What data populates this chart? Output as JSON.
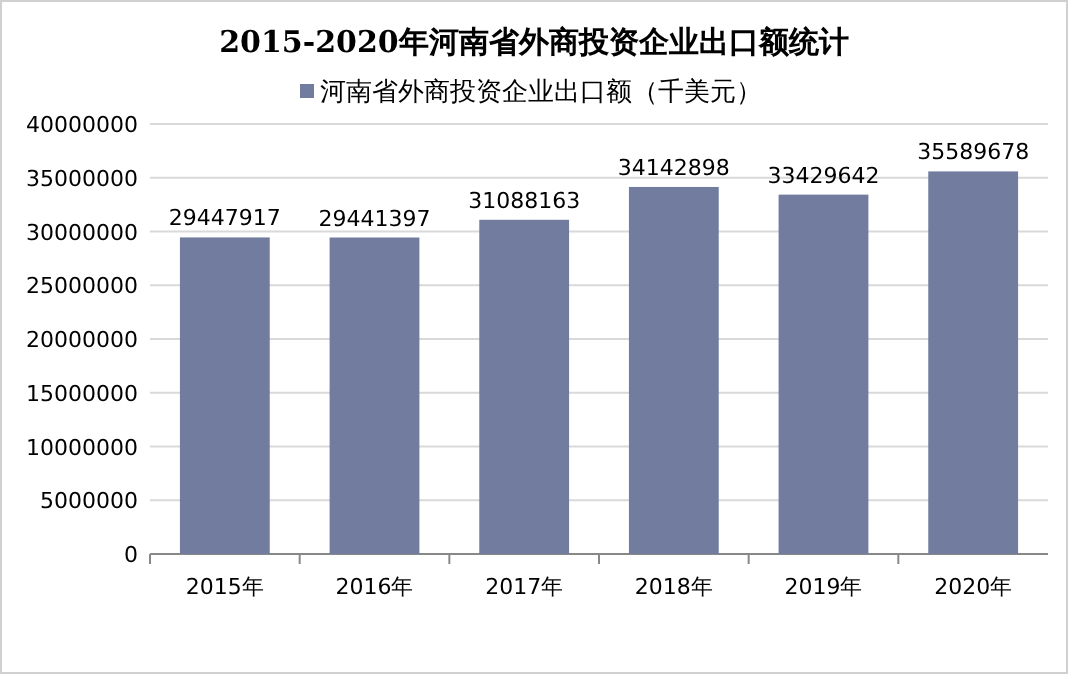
{
  "chart_data": {
    "type": "bar",
    "title": "2015-2020年河南省外商投资企业出口额统计",
    "categories": [
      "2015年",
      "2016年",
      "2017年",
      "2018年",
      "2019年",
      "2020年"
    ],
    "series": [
      {
        "name": "河南省外商投资企业出口额（千美元）",
        "color": "#717c9f",
        "values": [
          29447917,
          29441397,
          31088163,
          34142898,
          33429642,
          35589678
        ]
      }
    ],
    "ylim": [
      0,
      40000000
    ],
    "yticks": [
      0,
      5000000,
      10000000,
      15000000,
      20000000,
      25000000,
      30000000,
      35000000,
      40000000
    ],
    "grid": "y",
    "legend": "top",
    "data_labels": true
  }
}
